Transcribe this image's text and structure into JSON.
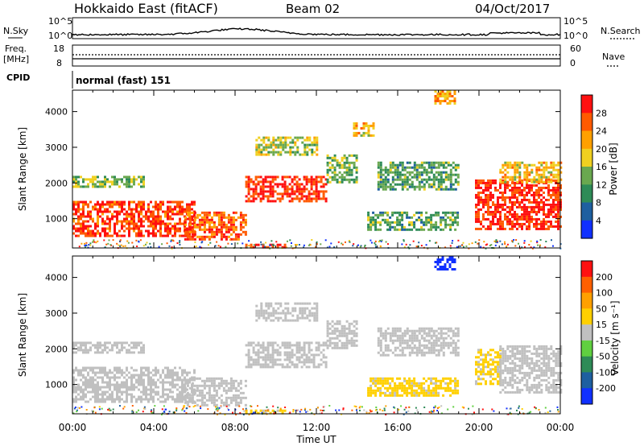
{
  "header": {
    "station": "Hokkaido East (fitACF)",
    "beam": "Beam 02",
    "date": "04/Oct/2017"
  },
  "top_panels": {
    "nsky_label": "N.Sky",
    "nsky_ticks": [
      "10^5",
      "10^0"
    ],
    "nsearch_label": "N.Search",
    "freq_label_1": "Freq.",
    "freq_label_2": "[MHz]",
    "freq_ticks": [
      "18",
      "8"
    ],
    "nave_label": "Nave",
    "nave_ticks": [
      "60",
      "0"
    ],
    "cpid_label": "CPID",
    "cpid_text": "normal (fast) 151"
  },
  "chart_data": [
    {
      "type": "heatmap",
      "title": "",
      "xlabel": "",
      "ylabel": "Slant Range [km]",
      "x_ticks": [
        "00:00",
        "04:00",
        "08:00",
        "12:00",
        "16:00",
        "20:00",
        "00:00"
      ],
      "y_ticks": [
        1000,
        2000,
        3000,
        4000
      ],
      "xlim_hours": [
        0,
        24
      ],
      "ylim_km": [
        180,
        4600
      ],
      "colorbar": {
        "label": "Power [dB]",
        "ticks": [
          "28",
          "24",
          "20",
          "16",
          "12",
          "8",
          "4"
        ],
        "range": [
          0,
          32
        ],
        "colors": [
          "#ff1010",
          "#ff5a00",
          "#ffa000",
          "#f0d020",
          "#6aa84f",
          "#2e8b57",
          "#1e5fa0",
          "#1030ff"
        ]
      },
      "regions": [
        {
          "t0": 0.0,
          "t1": 6.0,
          "r0": 500,
          "r1": 1500,
          "value": 28
        },
        {
          "t0": 0.0,
          "t1": 3.5,
          "r0": 1900,
          "r1": 2200,
          "value": 14
        },
        {
          "t0": 5.5,
          "t1": 8.5,
          "r0": 400,
          "r1": 1200,
          "value": 26
        },
        {
          "t0": 8.5,
          "t1": 12.5,
          "r0": 1500,
          "r1": 2200,
          "value": 29
        },
        {
          "t0": 9.0,
          "t1": 12.0,
          "r0": 2800,
          "r1": 3300,
          "value": 16
        },
        {
          "t0": 12.5,
          "t1": 14.0,
          "r0": 2000,
          "r1": 2800,
          "value": 14
        },
        {
          "t0": 13.8,
          "t1": 14.8,
          "r0": 3300,
          "r1": 3700,
          "value": 20
        },
        {
          "t0": 14.5,
          "t1": 19.0,
          "r0": 700,
          "r1": 1200,
          "value": 12
        },
        {
          "t0": 15.0,
          "t1": 19.0,
          "r0": 1800,
          "r1": 2600,
          "value": 12
        },
        {
          "t0": 17.8,
          "t1": 18.8,
          "r0": 4200,
          "r1": 4600,
          "value": 22
        },
        {
          "t0": 19.8,
          "t1": 24.0,
          "r0": 700,
          "r1": 2100,
          "value": 29
        },
        {
          "t0": 21.0,
          "t1": 24.0,
          "r0": 2000,
          "r1": 2600,
          "value": 20
        },
        {
          "t0": 8.5,
          "t1": 10.5,
          "r0": 200,
          "r1": 300,
          "value": 30
        }
      ]
    },
    {
      "type": "heatmap",
      "title": "",
      "xlabel": "Time UT",
      "ylabel": "Slant Range [km]",
      "x_ticks": [
        "00:00",
        "04:00",
        "08:00",
        "12:00",
        "16:00",
        "20:00",
        "00:00"
      ],
      "y_ticks": [
        1000,
        2000,
        3000,
        4000
      ],
      "xlim_hours": [
        0,
        24
      ],
      "ylim_km": [
        180,
        4600
      ],
      "colorbar": {
        "label": "Velocity [m s⁻¹]",
        "ticks": [
          "200",
          "100",
          "50",
          "15",
          "-15",
          "-50",
          "-100",
          "-200"
        ],
        "range": [
          -250,
          250
        ],
        "colors": [
          "#ff1010",
          "#ff6000",
          "#ffa000",
          "#ffd000",
          "#c0c0c0",
          "#60d040",
          "#2e8b57",
          "#1e5fa0",
          "#1030ff"
        ]
      },
      "regions": [
        {
          "t0": 0.0,
          "t1": 6.0,
          "r0": 500,
          "r1": 1500,
          "value": 0
        },
        {
          "t0": 0.0,
          "t1": 3.5,
          "r0": 1900,
          "r1": 2200,
          "value": 0
        },
        {
          "t0": 5.5,
          "t1": 8.5,
          "r0": 400,
          "r1": 1200,
          "value": 0
        },
        {
          "t0": 8.5,
          "t1": 12.5,
          "r0": 1500,
          "r1": 2200,
          "value": 0
        },
        {
          "t0": 9.0,
          "t1": 12.0,
          "r0": 2800,
          "r1": 3300,
          "value": 0
        },
        {
          "t0": 12.5,
          "t1": 14.0,
          "r0": 2000,
          "r1": 2800,
          "value": 0
        },
        {
          "t0": 14.5,
          "t1": 19.0,
          "r0": 700,
          "r1": 1200,
          "value": 40
        },
        {
          "t0": 15.0,
          "t1": 19.0,
          "r0": 1800,
          "r1": 2600,
          "value": 0
        },
        {
          "t0": 17.8,
          "t1": 18.8,
          "r0": 4200,
          "r1": 4600,
          "value": -220
        },
        {
          "t0": 19.8,
          "t1": 21.0,
          "r0": 1000,
          "r1": 2000,
          "value": 40
        },
        {
          "t0": 21.0,
          "t1": 24.0,
          "r0": 800,
          "r1": 2100,
          "value": 0
        },
        {
          "t0": 8.5,
          "t1": 10.5,
          "r0": 200,
          "r1": 300,
          "value": 40
        }
      ]
    }
  ]
}
